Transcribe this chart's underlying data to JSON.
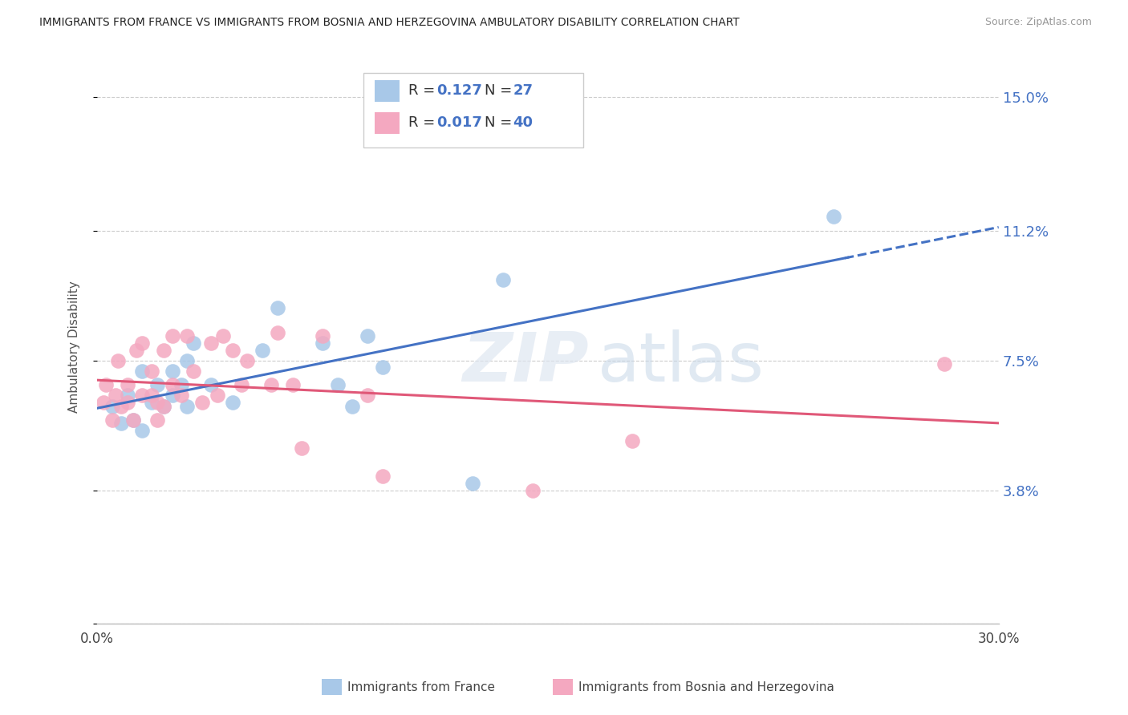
{
  "title": "IMMIGRANTS FROM FRANCE VS IMMIGRANTS FROM BOSNIA AND HERZEGOVINA AMBULATORY DISABILITY CORRELATION CHART",
  "source": "Source: ZipAtlas.com",
  "ylabel": "Ambulatory Disability",
  "xlim": [
    0.0,
    0.3
  ],
  "ylim": [
    0.0,
    0.158
  ],
  "france_R": 0.127,
  "france_N": 27,
  "bosnia_R": 0.017,
  "bosnia_N": 40,
  "france_color": "#a8c8e8",
  "bosnia_color": "#f4a8c0",
  "france_line_color": "#4472c4",
  "bosnia_line_color": "#e05878",
  "legend_label_france": "Immigrants from France",
  "legend_label_bosnia": "Immigrants from Bosnia and Herzegovina",
  "watermark_zip": "ZIP",
  "watermark_atlas": "atlas",
  "ytick_vals": [
    0.0,
    0.038,
    0.075,
    0.112,
    0.15
  ],
  "ytick_labels": [
    "",
    "3.8%",
    "7.5%",
    "11.2%",
    "15.0%"
  ],
  "france_x": [
    0.005,
    0.008,
    0.01,
    0.012,
    0.015,
    0.015,
    0.018,
    0.02,
    0.022,
    0.025,
    0.025,
    0.028,
    0.03,
    0.03,
    0.032,
    0.038,
    0.045,
    0.055,
    0.06,
    0.075,
    0.08,
    0.085,
    0.09,
    0.095,
    0.125,
    0.135,
    0.245
  ],
  "france_y": [
    0.062,
    0.057,
    0.065,
    0.058,
    0.072,
    0.055,
    0.063,
    0.068,
    0.062,
    0.072,
    0.065,
    0.068,
    0.062,
    0.075,
    0.08,
    0.068,
    0.063,
    0.078,
    0.09,
    0.08,
    0.068,
    0.062,
    0.082,
    0.073,
    0.04,
    0.098,
    0.116
  ],
  "bosnia_x": [
    0.002,
    0.003,
    0.005,
    0.006,
    0.007,
    0.008,
    0.01,
    0.01,
    0.012,
    0.013,
    0.015,
    0.015,
    0.018,
    0.018,
    0.02,
    0.02,
    0.022,
    0.022,
    0.025,
    0.025,
    0.028,
    0.03,
    0.032,
    0.035,
    0.038,
    0.04,
    0.042,
    0.045,
    0.048,
    0.05,
    0.058,
    0.06,
    0.065,
    0.068,
    0.075,
    0.09,
    0.095,
    0.145,
    0.178,
    0.282
  ],
  "bosnia_y": [
    0.063,
    0.068,
    0.058,
    0.065,
    0.075,
    0.062,
    0.063,
    0.068,
    0.058,
    0.078,
    0.065,
    0.08,
    0.065,
    0.072,
    0.058,
    0.063,
    0.062,
    0.078,
    0.068,
    0.082,
    0.065,
    0.082,
    0.072,
    0.063,
    0.08,
    0.065,
    0.082,
    0.078,
    0.068,
    0.075,
    0.068,
    0.083,
    0.068,
    0.05,
    0.082,
    0.065,
    0.042,
    0.038,
    0.052,
    0.074
  ]
}
